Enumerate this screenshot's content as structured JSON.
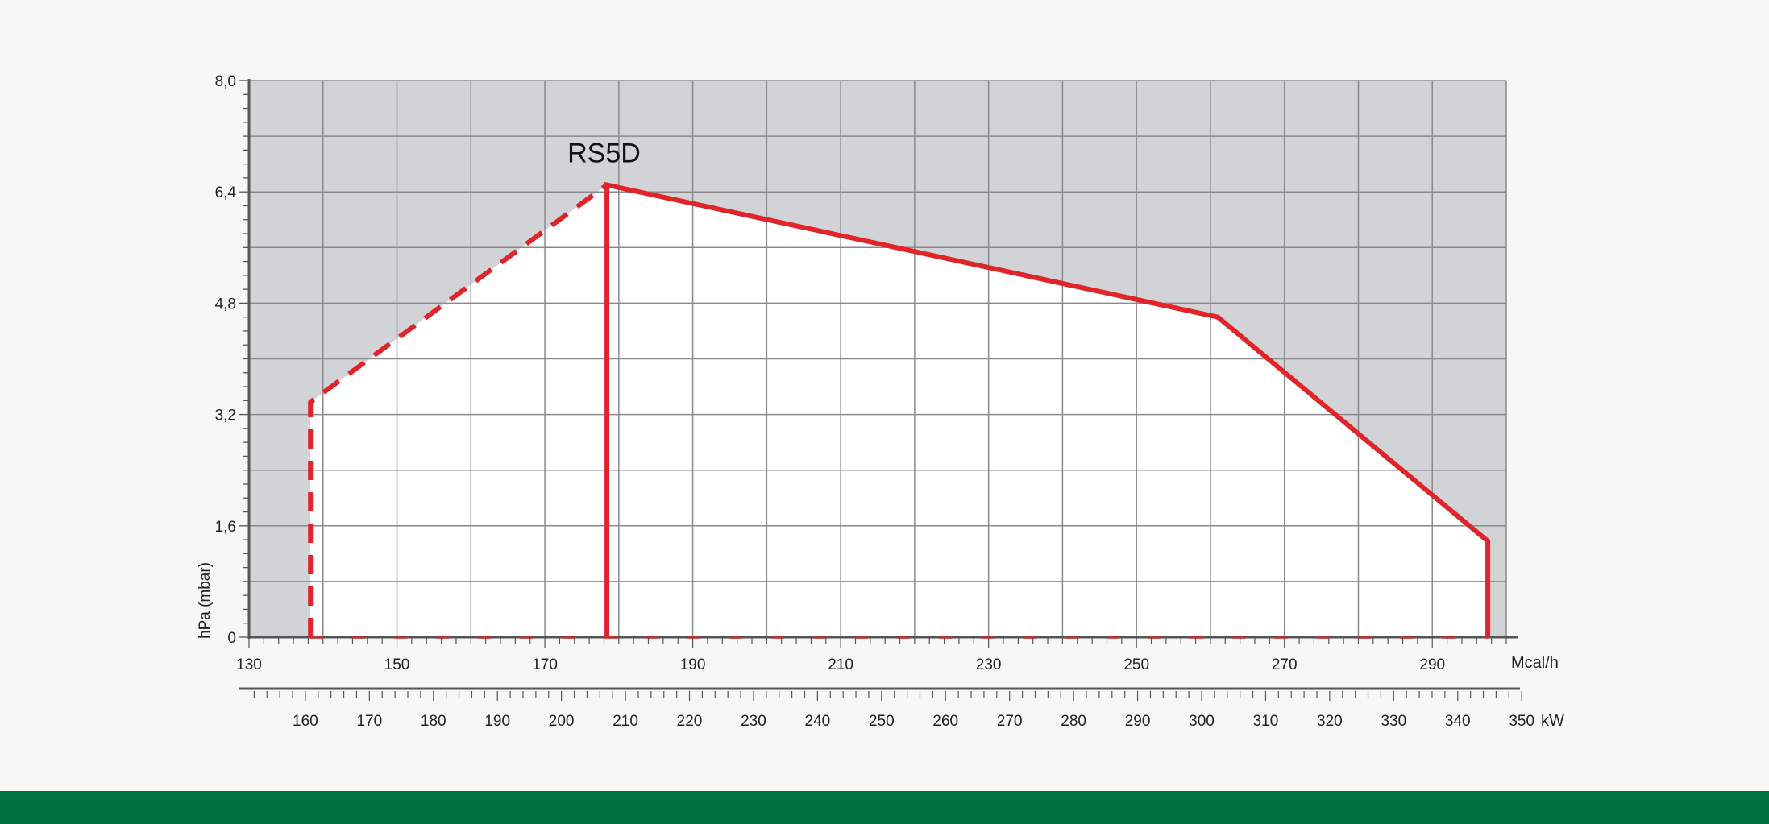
{
  "chart_data": {
    "type": "area",
    "title": "",
    "ylabel": "hPa (mbar)",
    "xlabel": "Mcal/h",
    "x2label": "kW",
    "xlim": [
      130,
      300
    ],
    "ylim": [
      0,
      8.0
    ],
    "x_ticks": [
      130,
      150,
      170,
      190,
      210,
      230,
      250,
      270,
      290
    ],
    "x_tick_labels": [
      "130",
      "150",
      "170",
      "190",
      "210",
      "230",
      "250",
      "270",
      "290"
    ],
    "x_grid_step": 10,
    "y_ticks": [
      0,
      1.6,
      3.2,
      4.8,
      6.4,
      8.0
    ],
    "y_tick_labels": [
      "0",
      "1,6",
      "3,2",
      "4,8",
      "6,4",
      "8,0"
    ],
    "y_grid_step": 0.8,
    "x2_ticks": [
      160,
      170,
      180,
      190,
      200,
      210,
      220,
      230,
      240,
      250,
      260,
      270,
      280,
      290,
      300,
      310,
      320,
      330,
      340,
      350
    ],
    "x2_tick_labels": [
      "160",
      "170",
      "180",
      "190",
      "200",
      "210",
      "220",
      "230",
      "240",
      "250",
      "260",
      "270",
      "280",
      "290",
      "300",
      "310",
      "320",
      "330",
      "340",
      "350"
    ],
    "x2_range_kw": [
      151.2,
      349.6
    ],
    "grid": true,
    "series": [
      {
        "name": "RS5D",
        "label_at": [
          178,
          6.5
        ],
        "dashed": [
          [
            138.3,
            0
          ],
          [
            138.3,
            3.38
          ],
          [
            178.4,
            6.5
          ]
        ],
        "solid": [
          [
            178.4,
            0
          ],
          [
            178.4,
            6.5
          ],
          [
            261,
            4.6
          ],
          [
            297.5,
            1.38
          ],
          [
            297.5,
            0
          ]
        ],
        "baseline": [
          [
            138.3,
            0
          ],
          [
            297.5,
            0
          ]
        ],
        "color": "#e0242a"
      }
    ],
    "colors": {
      "plot_background": "#d2d3d7",
      "area_fill": "#ffffff",
      "grid": "#8a8a8a",
      "axis": "#555555",
      "curve": "#e0242a",
      "footer": "#007140"
    }
  }
}
